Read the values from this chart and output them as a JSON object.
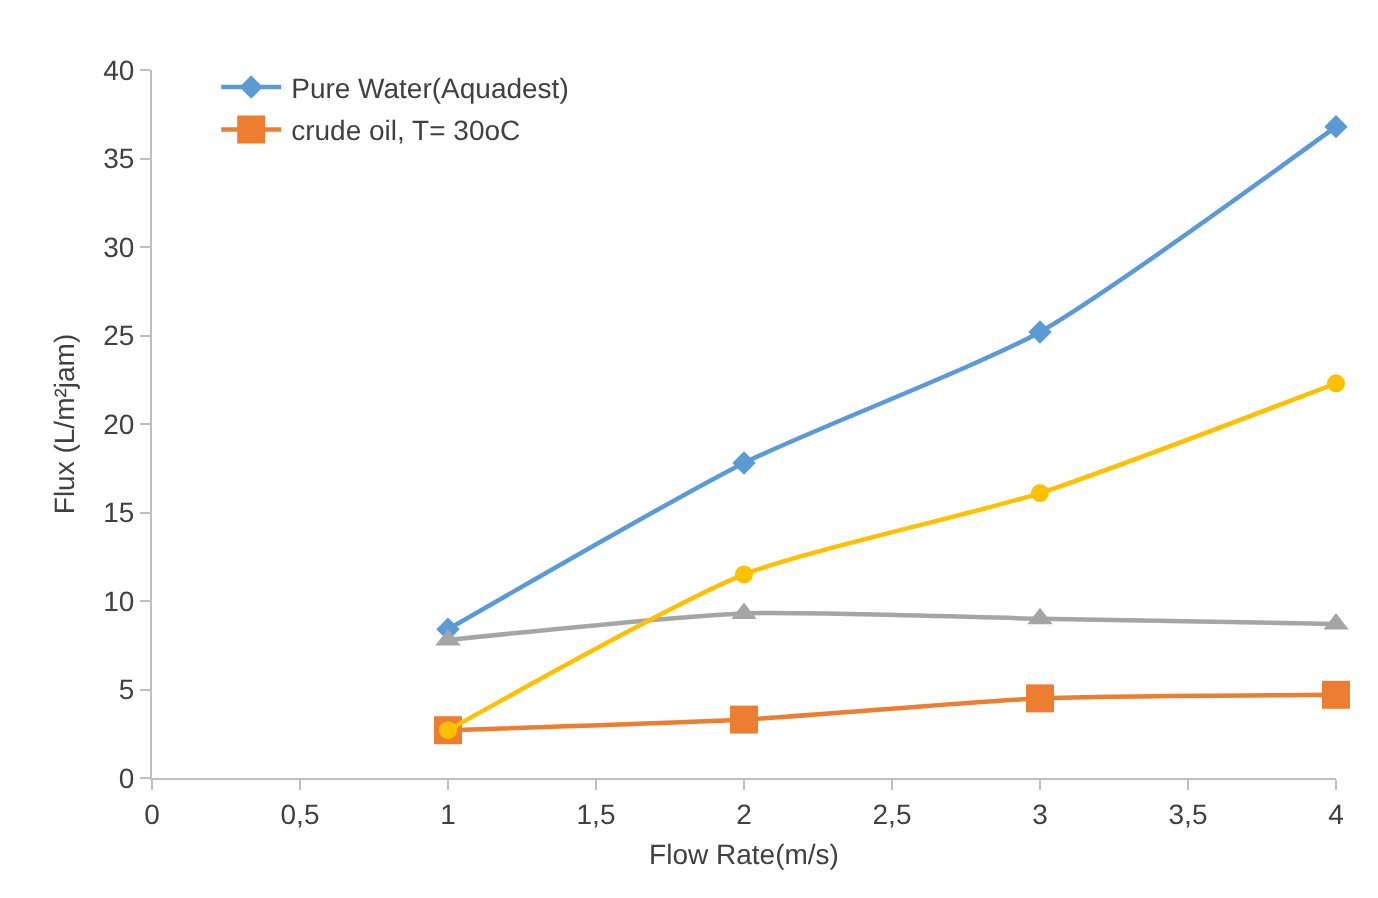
{
  "chart_data": {
    "type": "line",
    "xlabel": "Flow Rate(m/s)",
    "ylabel": "Flux (L/m²jam)",
    "x": [
      1,
      2,
      3,
      4
    ],
    "series": [
      {
        "name": "Pure Water(Aquadest)",
        "color": "#5b9bd5",
        "marker": "diamond",
        "values": [
          8.4,
          17.8,
          25.2,
          36.8
        ]
      },
      {
        "name": "crude oil, T= 30oC",
        "color": "#ed7d31",
        "marker": "square",
        "values": [
          2.7,
          3.3,
          4.5,
          4.7
        ]
      },
      {
        "color": "#a5a5a5",
        "marker": "triangle",
        "values": [
          7.8,
          9.3,
          9.0,
          8.7
        ]
      },
      {
        "color": "#ffc000",
        "marker": "circle",
        "values": [
          2.7,
          11.5,
          16.1,
          22.3
        ]
      }
    ],
    "xlim": [
      0,
      4
    ],
    "xticks": [
      0,
      {
        "value": 0.5,
        "label": "0,5"
      },
      1,
      {
        "value": 1.5,
        "label": "1,5"
      },
      2,
      {
        "value": 2.5,
        "label": "2,5"
      },
      3,
      {
        "value": 3.5,
        "label": "3,5"
      },
      4
    ],
    "ylim": [
      0,
      40
    ],
    "yticks": [
      0,
      5,
      10,
      15,
      20,
      25,
      30,
      35,
      40
    ],
    "grid": false,
    "legend": "top left",
    "line_style": "solid"
  }
}
